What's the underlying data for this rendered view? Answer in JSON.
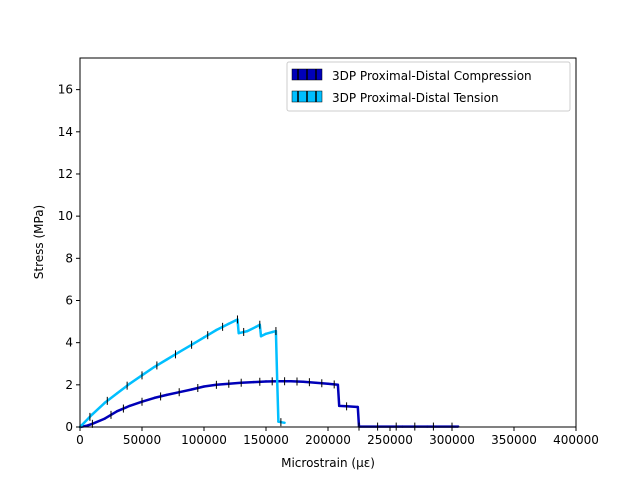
{
  "chart_data": {
    "type": "line",
    "title": "",
    "xlabel": "Microstrain (με)",
    "ylabel": "Stress (MPa)",
    "xlim": [
      0,
      400000
    ],
    "ylim": [
      0,
      17.5
    ],
    "xticks": [
      0,
      50000,
      100000,
      150000,
      200000,
      250000,
      300000,
      350000,
      400000
    ],
    "xtick_labels": [
      "0",
      "50000",
      "100000",
      "150000",
      "200000",
      "250000",
      "300000",
      "350000",
      "400000"
    ],
    "yticks": [
      0,
      2,
      4,
      6,
      8,
      10,
      12,
      14,
      16
    ],
    "ytick_labels": [
      "0",
      "2",
      "4",
      "6",
      "8",
      "10",
      "12",
      "14",
      "16"
    ],
    "grid": false,
    "legend_position": "top-right",
    "series": [
      {
        "name": "3DP Proximal-Distal Compression",
        "color": "#0000b8",
        "errorbar_color": "#000000",
        "x": [
          0,
          5000,
          10000,
          20000,
          30000,
          40000,
          50000,
          60000,
          70000,
          80000,
          90000,
          100000,
          110000,
          120000,
          130000,
          140000,
          150000,
          160000,
          170000,
          180000,
          190000,
          200000,
          208000,
          209000,
          215000,
          224000,
          225000,
          240000,
          260000,
          280000,
          300000,
          305000
        ],
        "y": [
          0,
          0.05,
          0.15,
          0.4,
          0.75,
          1.0,
          1.2,
          1.38,
          1.52,
          1.65,
          1.78,
          1.92,
          2.0,
          2.05,
          2.1,
          2.13,
          2.16,
          2.17,
          2.17,
          2.15,
          2.1,
          2.05,
          2.0,
          1.0,
          0.98,
          0.95,
          0.02,
          0.02,
          0.02,
          0.02,
          0.02,
          0.02
        ],
        "errorbars_at_x": [
          10000,
          25000,
          35000,
          50000,
          65000,
          80000,
          95000,
          110000,
          120000,
          130000,
          145000,
          155000,
          165000,
          175000,
          185000,
          195000,
          205000,
          215000,
          225000,
          240000,
          255000,
          270000,
          285000,
          300000
        ]
      },
      {
        "name": "3DP Proximal-Distal Tension",
        "color": "#00bfff",
        "errorbar_color": "#000000",
        "x": [
          0,
          10000,
          20000,
          30000,
          40000,
          50000,
          60000,
          70000,
          80000,
          90000,
          100000,
          110000,
          120000,
          127000,
          128000,
          135000,
          142000,
          145000,
          146000,
          150000,
          155000,
          158000,
          159000,
          160000,
          165000
        ],
        "y": [
          0,
          0.6,
          1.15,
          1.6,
          2.05,
          2.45,
          2.85,
          3.2,
          3.55,
          3.9,
          4.25,
          4.6,
          4.9,
          5.1,
          4.45,
          4.55,
          4.75,
          4.85,
          4.3,
          4.42,
          4.5,
          4.55,
          2.2,
          0.25,
          0.2
        ],
        "errorbars_at_x": [
          8000,
          22000,
          38000,
          50000,
          62000,
          77000,
          90000,
          103000,
          115000,
          127000,
          132000,
          145000,
          158000,
          162000
        ]
      }
    ]
  }
}
